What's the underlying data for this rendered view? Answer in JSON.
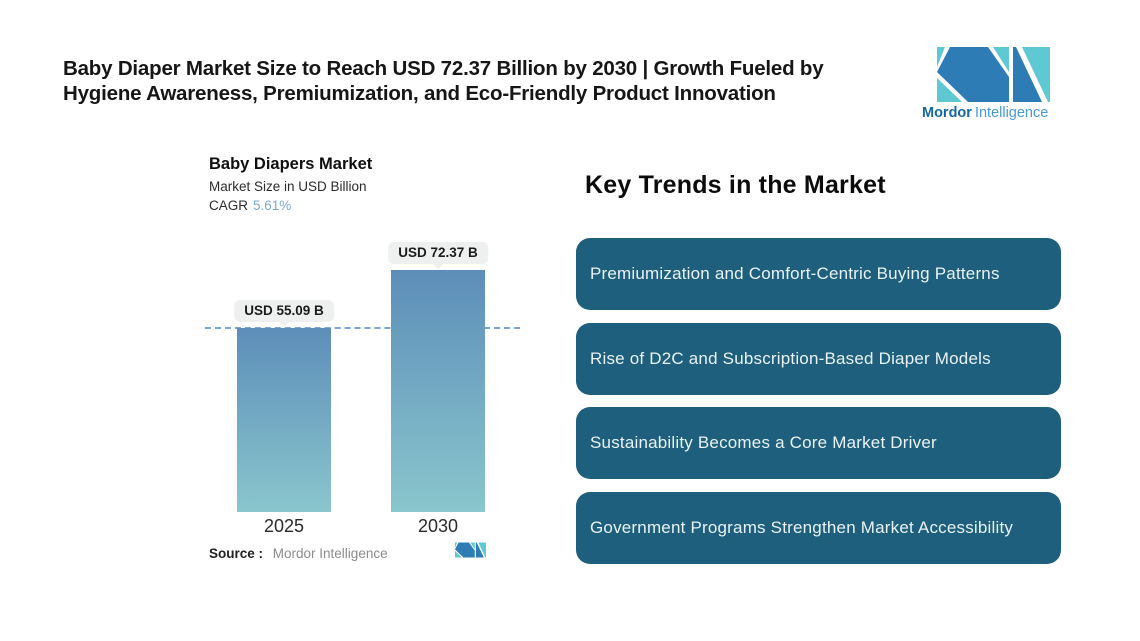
{
  "header": {
    "title_line1": "Baby Diaper Market Size to Reach USD 72.37 Billion by 2030 | Growth Fueled by",
    "title_line2": "Hygiene Awareness, Premiumization, and Eco-Friendly Product Innovation"
  },
  "brand": {
    "bold": "Mordor",
    "light": "Intelligence"
  },
  "chart": {
    "title": "Baby Diapers Market",
    "subtitle": "Market Size in USD Billion",
    "cagr_label": "CAGR",
    "cagr_value": "5.61%",
    "source_label": "Source :",
    "source_value": "Mordor Intelligence"
  },
  "chart_data": {
    "type": "bar",
    "title": "Baby Diapers Market",
    "ylabel": "Market Size in USD Billion",
    "categories": [
      "2025",
      "2030"
    ],
    "values": [
      55.09,
      72.37
    ],
    "value_labels": [
      "USD 55.09 B",
      "USD 72.37 B"
    ],
    "cagr_pct": 5.61,
    "reference_line": 55.09,
    "reference_line_style": "dashed",
    "grid": false,
    "legend": "none",
    "bar_count": 2
  },
  "trends": {
    "heading": "Key Trends in the Market",
    "items": [
      "Premiumization and Comfort-Centric Buying Patterns",
      "Rise of D2C and Subscription-Based Diaper Models",
      "Sustainability Becomes a Core Market Driver",
      "Government Programs Strengthen Market Accessibility"
    ]
  },
  "colors": {
    "bar_gradient_top": "#5d8eb9",
    "bar_gradient_bottom": "#8ac6cd",
    "dash_line": "#7aa5d8",
    "trend_box": "#1e5f7d",
    "trend_text": "#e9f2f4",
    "cagr_value": "#7fa9d2",
    "pill_bg": "#edf0ef",
    "logo_blue": "#2e7cb5",
    "logo_teal": "#5fc9d3",
    "brand_bold_text": "#15689f",
    "brand_light_text": "#459ace"
  }
}
